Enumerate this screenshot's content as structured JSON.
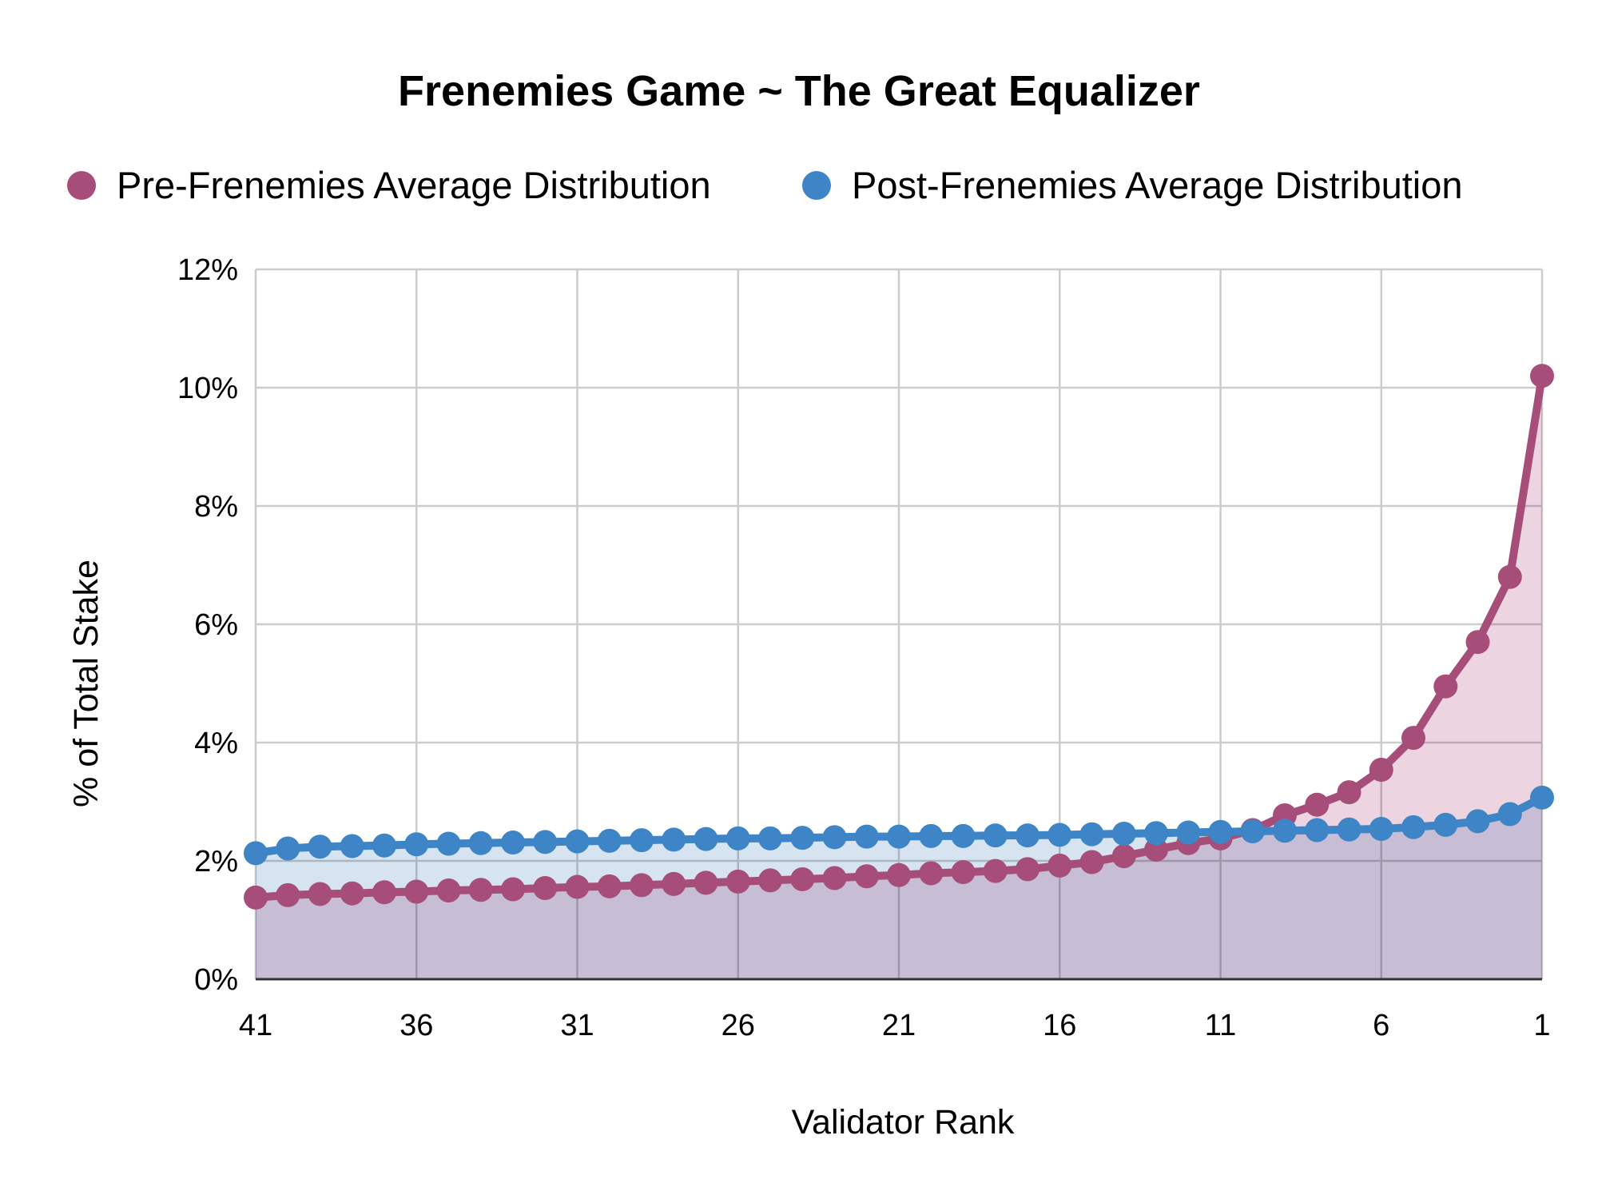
{
  "chart_data": {
    "type": "area",
    "title": "Frenemies Game ~ The Great Equalizer",
    "xlabel": "Validator Rank",
    "ylabel": "% of Total Stake",
    "x_reversed": true,
    "x": [
      41,
      40,
      39,
      38,
      37,
      36,
      35,
      34,
      33,
      32,
      31,
      30,
      29,
      28,
      27,
      26,
      25,
      24,
      23,
      22,
      21,
      20,
      19,
      18,
      17,
      16,
      15,
      14,
      13,
      12,
      11,
      10,
      9,
      8,
      7,
      6,
      5,
      4,
      3,
      2,
      1
    ],
    "x_ticks": [
      "41",
      "36",
      "31",
      "26",
      "21",
      "16",
      "11",
      "6",
      "1"
    ],
    "ylim": [
      0,
      12
    ],
    "y_ticks": [
      "0%",
      "2%",
      "4%",
      "6%",
      "8%",
      "10%",
      "12%"
    ],
    "y_unit": "%",
    "grid": true,
    "legend_position": "top",
    "series": [
      {
        "name": "Pre-Frenemies Average Distribution",
        "color": "#a64d79",
        "fill": "#e6c2d4",
        "values": [
          1.38,
          1.42,
          1.44,
          1.45,
          1.47,
          1.48,
          1.5,
          1.51,
          1.52,
          1.54,
          1.56,
          1.57,
          1.59,
          1.61,
          1.63,
          1.65,
          1.67,
          1.69,
          1.71,
          1.74,
          1.76,
          1.79,
          1.81,
          1.83,
          1.86,
          1.92,
          1.98,
          2.08,
          2.19,
          2.3,
          2.38,
          2.52,
          2.77,
          2.95,
          3.16,
          3.54,
          4.08,
          4.95,
          5.7,
          6.8,
          10.2
        ]
      },
      {
        "name": "Post-Frenemies Average Distribution",
        "color": "#3d85c6",
        "fill": "#c5d8ec",
        "values": [
          2.13,
          2.21,
          2.24,
          2.25,
          2.26,
          2.28,
          2.29,
          2.3,
          2.31,
          2.32,
          2.33,
          2.34,
          2.35,
          2.36,
          2.37,
          2.38,
          2.38,
          2.39,
          2.4,
          2.41,
          2.41,
          2.42,
          2.42,
          2.43,
          2.43,
          2.44,
          2.45,
          2.46,
          2.47,
          2.48,
          2.49,
          2.5,
          2.51,
          2.52,
          2.53,
          2.54,
          2.57,
          2.61,
          2.67,
          2.79,
          3.07
        ]
      }
    ]
  }
}
